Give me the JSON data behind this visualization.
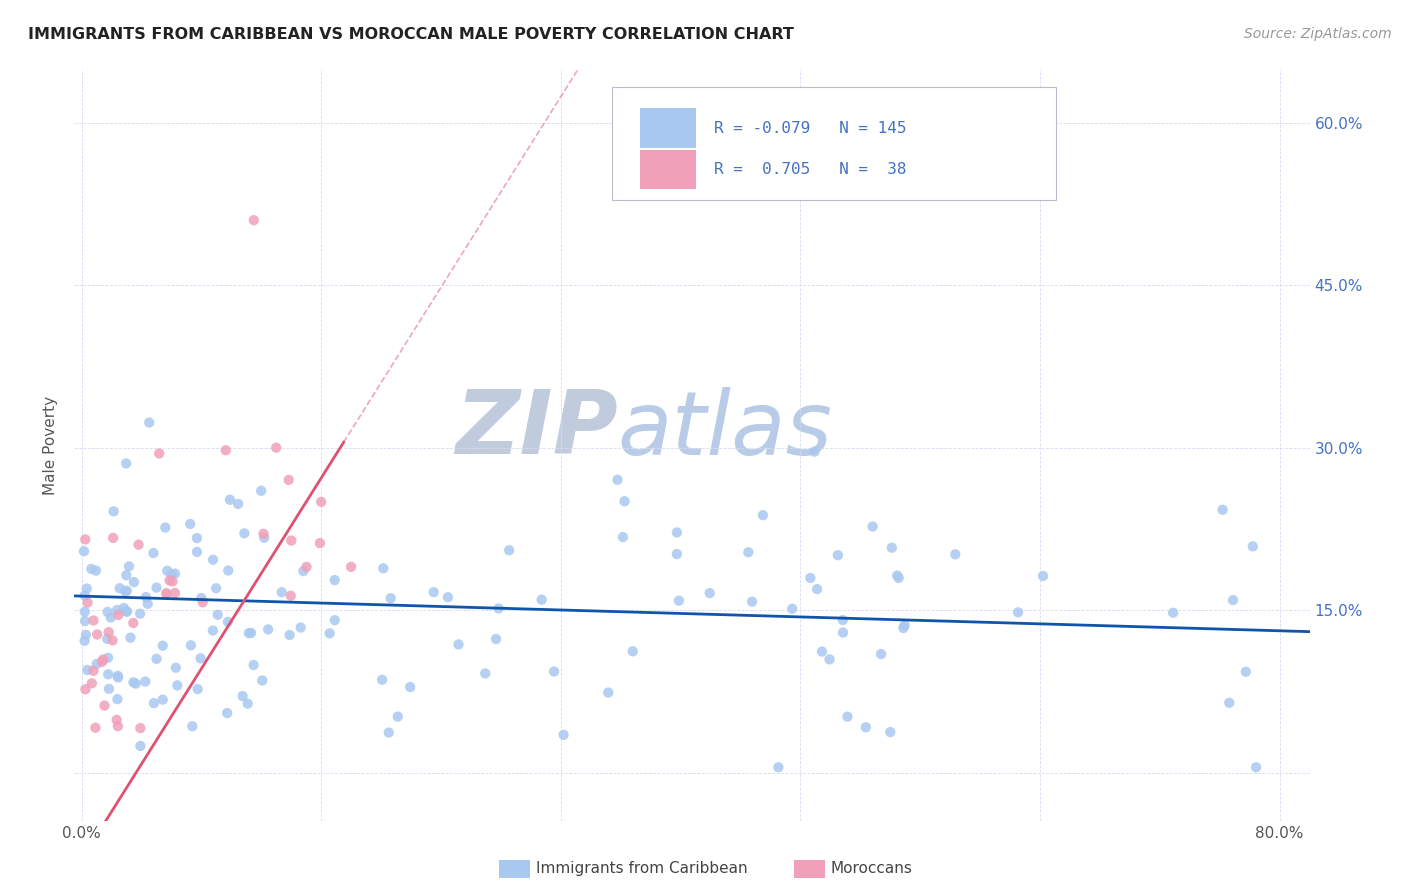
{
  "title": "IMMIGRANTS FROM CARIBBEAN VS MOROCCAN MALE POVERTY CORRELATION CHART",
  "source": "Source: ZipAtlas.com",
  "ylabel": "Male Poverty",
  "caribbean_R": -0.079,
  "caribbean_N": 145,
  "moroccan_R": 0.705,
  "moroccan_N": 38,
  "caribbean_color": "#A8C8F0",
  "moroccan_color": "#F0A0B8",
  "caribbean_line_color": "#1055AA",
  "moroccan_line_color": "#E05070",
  "legend_text_color": "#4472C4",
  "background_color": "#FFFFFF",
  "grid_color": "#D8DCF0",
  "watermark_zip_color": "#C0CCDD",
  "watermark_atlas_color": "#B8CCE8",
  "title_color": "#222222",
  "source_color": "#999999",
  "right_axis_color": "#4472C4",
  "legend_label_caribbean": "Immigrants from Caribbean",
  "legend_label_moroccan": "Moroccans",
  "xlim": [
    -0.005,
    0.82
  ],
  "ylim": [
    -0.045,
    0.65
  ],
  "ytick_vals": [
    0.0,
    0.15,
    0.3,
    0.45,
    0.6
  ],
  "ytick_labels_right": [
    "",
    "15.0%",
    "30.0%",
    "45.0%",
    "60.0%"
  ],
  "xtick_vals": [
    0.0,
    0.16,
    0.32,
    0.48,
    0.64,
    0.8
  ],
  "xtick_labels": [
    "0.0%",
    "",
    "",
    "",
    "",
    "80.0%"
  ]
}
